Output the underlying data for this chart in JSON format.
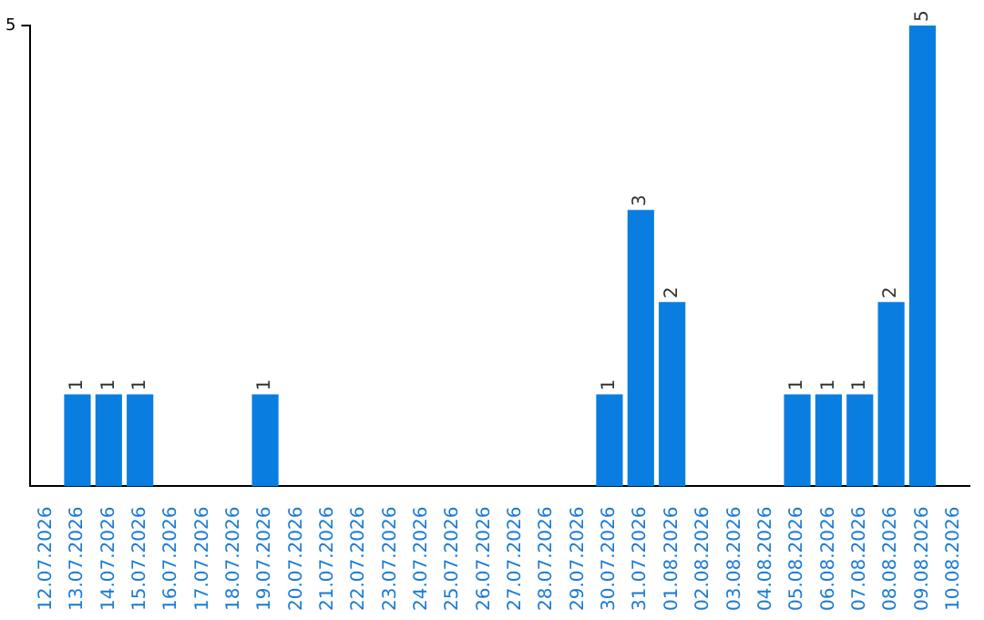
{
  "chart_data": {
    "type": "bar",
    "categories": [
      "12.07.2026",
      "13.07.2026",
      "14.07.2026",
      "15.07.2026",
      "16.07.2026",
      "17.07.2026",
      "18.07.2026",
      "19.07.2026",
      "20.07.2026",
      "21.07.2026",
      "22.07.2026",
      "23.07.2026",
      "24.07.2026",
      "25.07.2026",
      "26.07.2026",
      "27.07.2026",
      "28.07.2026",
      "29.07.2026",
      "30.07.2026",
      "31.07.2026",
      "01.08.2026",
      "02.08.2026",
      "03.08.2026",
      "04.08.2026",
      "05.08.2026",
      "06.08.2026",
      "07.08.2026",
      "08.08.2026",
      "09.08.2026",
      "10.08.2026"
    ],
    "values": [
      0,
      1,
      1,
      1,
      0,
      0,
      0,
      1,
      0,
      0,
      0,
      0,
      0,
      0,
      0,
      0,
      0,
      0,
      1,
      3,
      2,
      0,
      0,
      0,
      1,
      1,
      1,
      2,
      5,
      0
    ],
    "value_labels": [
      null,
      "1",
      "1",
      "1",
      null,
      null,
      null,
      "1",
      null,
      null,
      null,
      null,
      null,
      null,
      null,
      null,
      null,
      null,
      "1",
      "3",
      "2",
      null,
      null,
      null,
      "1",
      "1",
      "1",
      "2",
      "5",
      null
    ],
    "color": "#0a7ee0",
    "ylim": [
      0,
      5
    ],
    "yticks": [
      5
    ],
    "legend": false
  }
}
